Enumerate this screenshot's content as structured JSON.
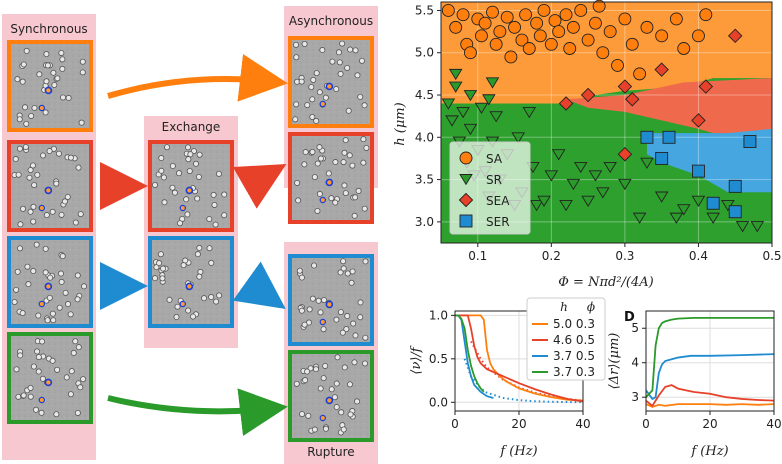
{
  "schematic": {
    "col_synchronous": "Synchronous",
    "col_exchange": "Exchange",
    "col_asynchronous": "Asynchronous",
    "col_rupture": "Rupture",
    "colors": {
      "SA": "#ff7f0e",
      "SEA": "#e8412a",
      "SER": "#1f8bd1",
      "SR": "#2a9a2a",
      "label_bg": "#f8c8d0"
    }
  },
  "chart_data": [
    {
      "id": "phase",
      "type": "scatter",
      "xlabel": "Φ = Nπd²/(4A)",
      "ylabel": "h (μm)",
      "xlim": [
        0.05,
        0.5
      ],
      "ylim": [
        2.75,
        5.6
      ],
      "xticks": [
        "0.1",
        "0.2",
        "0.3",
        "0.4",
        "0.5"
      ],
      "yticks": [
        "3.0",
        "3.5",
        "4.0",
        "4.5",
        "5.0",
        "5.5"
      ],
      "legend": {
        "placement": "bottom-left",
        "entries": [
          "SA",
          "SR",
          "SEA",
          "SER"
        ]
      },
      "series": [
        {
          "name": "SA",
          "marker": "circle",
          "color": "#ff7f0e",
          "points": [
            [
              0.06,
              5.5
            ],
            [
              0.07,
              5.3
            ],
            [
              0.08,
              5.45
            ],
            [
              0.085,
              5.1
            ],
            [
              0.09,
              5.0
            ],
            [
              0.1,
              5.4
            ],
            [
              0.105,
              5.2
            ],
            [
              0.11,
              5.35
            ],
            [
              0.12,
              5.48
            ],
            [
              0.125,
              5.1
            ],
            [
              0.13,
              5.25
            ],
            [
              0.14,
              5.42
            ],
            [
              0.145,
              4.95
            ],
            [
              0.15,
              5.3
            ],
            [
              0.16,
              5.15
            ],
            [
              0.165,
              5.45
            ],
            [
              0.17,
              5.05
            ],
            [
              0.18,
              5.35
            ],
            [
              0.185,
              5.2
            ],
            [
              0.19,
              5.5
            ],
            [
              0.2,
              5.1
            ],
            [
              0.205,
              5.38
            ],
            [
              0.21,
              5.25
            ],
            [
              0.22,
              5.45
            ],
            [
              0.225,
              5.05
            ],
            [
              0.23,
              5.3
            ],
            [
              0.24,
              5.5
            ],
            [
              0.25,
              5.15
            ],
            [
              0.26,
              5.35
            ],
            [
              0.265,
              5.55
            ],
            [
              0.27,
              5.0
            ],
            [
              0.28,
              5.25
            ],
            [
              0.29,
              4.85
            ],
            [
              0.3,
              5.4
            ],
            [
              0.31,
              5.1
            ],
            [
              0.32,
              4.75
            ],
            [
              0.33,
              5.3
            ],
            [
              0.35,
              5.2
            ],
            [
              0.37,
              5.4
            ],
            [
              0.38,
              5.05
            ],
            [
              0.4,
              5.2
            ],
            [
              0.41,
              5.45
            ]
          ]
        },
        {
          "name": "SR",
          "marker": "triangle-down",
          "color": "#2a9a2a",
          "points": [
            [
              0.06,
              4.4
            ],
            [
              0.065,
              4.2
            ],
            [
              0.07,
              4.6
            ],
            [
              0.075,
              3.95
            ],
            [
              0.08,
              4.3
            ],
            [
              0.085,
              3.7
            ],
            [
              0.09,
              4.1
            ],
            [
              0.095,
              3.55
            ],
            [
              0.1,
              3.85
            ],
            [
              0.105,
              4.35
            ],
            [
              0.11,
              3.6
            ],
            [
              0.115,
              3.3
            ],
            [
              0.12,
              3.95
            ],
            [
              0.125,
              4.25
            ],
            [
              0.13,
              3.5
            ],
            [
              0.14,
              3.8
            ],
            [
              0.15,
              3.2
            ],
            [
              0.155,
              4.0
            ],
            [
              0.16,
              3.35
            ],
            [
              0.17,
              4.3
            ],
            [
              0.175,
              3.65
            ],
            [
              0.18,
              3.2
            ],
            [
              0.19,
              3.25
            ],
            [
              0.2,
              3.55
            ],
            [
              0.21,
              3.8
            ],
            [
              0.22,
              3.2
            ],
            [
              0.23,
              3.45
            ],
            [
              0.24,
              3.65
            ],
            [
              0.25,
              3.25
            ],
            [
              0.26,
              3.55
            ],
            [
              0.27,
              3.35
            ],
            [
              0.28,
              3.65
            ],
            [
              0.3,
              3.45
            ],
            [
              0.32,
              3.05
            ],
            [
              0.33,
              3.7
            ],
            [
              0.35,
              3.3
            ],
            [
              0.37,
              3.05
            ],
            [
              0.38,
              3.15
            ],
            [
              0.4,
              3.25
            ],
            [
              0.42,
              3.05
            ],
            [
              0.44,
              3.2
            ],
            [
              0.46,
              2.95
            ],
            [
              0.48,
              2.95
            ],
            [
              0.07,
              4.75
            ],
            [
              0.12,
              4.65
            ],
            [
              0.09,
              4.5
            ],
            [
              0.115,
              4.45
            ]
          ]
        },
        {
          "name": "SEA",
          "marker": "diamond",
          "color": "#e8412a",
          "points": [
            [
              0.22,
              4.4
            ],
            [
              0.25,
              4.5
            ],
            [
              0.3,
              4.6
            ],
            [
              0.31,
              4.45
            ],
            [
              0.35,
              4.8
            ],
            [
              0.4,
              4.2
            ],
            [
              0.41,
              4.6
            ],
            [
              0.45,
              5.2
            ],
            [
              0.3,
              3.8
            ]
          ]
        },
        {
          "name": "SER",
          "marker": "square",
          "color": "#1f8bd1",
          "points": [
            [
              0.33,
              4.0
            ],
            [
              0.35,
              3.75
            ],
            [
              0.36,
              4.0
            ],
            [
              0.4,
              3.6
            ],
            [
              0.42,
              3.22
            ],
            [
              0.45,
              3.42
            ],
            [
              0.45,
              3.12
            ],
            [
              0.47,
              3.95
            ]
          ]
        }
      ]
    },
    {
      "id": "rate",
      "type": "line",
      "xlabel": "f (Hz)",
      "ylabel": "⟨ν⟩/f",
      "xlim": [
        0,
        40
      ],
      "ylim": [
        -0.1,
        1.05
      ],
      "xticks": [
        "0",
        "20",
        "40"
      ],
      "yticks": [
        "0.0",
        "0.5",
        "1.0"
      ],
      "legend_header": [
        "h",
        "ϕ"
      ],
      "series": [
        {
          "name": "5.0 0.3",
          "color": "#ff7f0e",
          "x": [
            0,
            2,
            4,
            6,
            8,
            9,
            10,
            11,
            12,
            14,
            16,
            20,
            25,
            30,
            35,
            40
          ],
          "y": [
            1,
            1,
            1,
            1,
            1,
            0.95,
            0.6,
            0.45,
            0.38,
            0.3,
            0.24,
            0.16,
            0.1,
            0.06,
            0.03,
            0.02
          ]
        },
        {
          "name": "4.6 0.5",
          "color": "#e8412a",
          "x": [
            0,
            2,
            4,
            5,
            6,
            7,
            8,
            10,
            15,
            20,
            25,
            30,
            35,
            40
          ],
          "y": [
            1,
            1,
            1,
            0.85,
            0.65,
            0.52,
            0.45,
            0.38,
            0.3,
            0.22,
            0.15,
            0.09,
            0.04,
            0.01
          ]
        },
        {
          "name": "3.7 0.5",
          "color": "#1f8bd1",
          "x": [
            0,
            1,
            2,
            3,
            4,
            5,
            6,
            8,
            10,
            12
          ],
          "y": [
            1,
            1,
            0.95,
            0.7,
            0.45,
            0.3,
            0.2,
            0.12,
            0.07,
            0.05
          ]
        },
        {
          "name": "3.7 0.3",
          "color": "#2a9a2a",
          "x": [
            0,
            1,
            2,
            3,
            4,
            5,
            6,
            7,
            8,
            9
          ],
          "y": [
            1,
            1,
            0.96,
            0.85,
            0.6,
            0.42,
            0.3,
            0.22,
            0.16,
            0.12
          ]
        }
      ],
      "dotted_series": [
        {
          "color": "#e8412a",
          "x": [
            5,
            8,
            10,
            15,
            20,
            25,
            30,
            35,
            40
          ],
          "y": [
            0.7,
            0.5,
            0.4,
            0.26,
            0.17,
            0.11,
            0.07,
            0.04,
            0.02
          ]
        },
        {
          "color": "#1f8bd1",
          "x": [
            3,
            5,
            8,
            10,
            15,
            20,
            25,
            30,
            35,
            40
          ],
          "y": [
            0.5,
            0.3,
            0.16,
            0.11,
            0.05,
            0.025,
            0.012,
            0.006,
            0.003,
            0.001
          ]
        }
      ]
    },
    {
      "id": "displacement",
      "panel_label": "D",
      "type": "line",
      "xlabel": "f (Hz)",
      "ylabel": "⟨Δr⟩(μm)",
      "xlim": [
        0,
        40
      ],
      "ylim": [
        2.6,
        5.5
      ],
      "xticks": [
        "0",
        "20",
        "40"
      ],
      "yticks": [
        "3",
        "4",
        "5"
      ],
      "series": [
        {
          "name": "5.0 0.3",
          "color": "#ff7f0e",
          "x": [
            0,
            2,
            4,
            6,
            10,
            15,
            20,
            25,
            30,
            35,
            40
          ],
          "y": [
            2.8,
            2.72,
            2.78,
            2.75,
            2.8,
            2.8,
            2.8,
            2.78,
            2.8,
            2.78,
            2.8
          ]
        },
        {
          "name": "4.6 0.5",
          "color": "#e8412a",
          "x": [
            0,
            2,
            4,
            6,
            8,
            10,
            15,
            20,
            25,
            30,
            35,
            40
          ],
          "y": [
            2.9,
            2.75,
            3.05,
            3.3,
            3.35,
            3.25,
            3.15,
            3.1,
            3.0,
            2.95,
            2.92,
            2.9
          ]
        },
        {
          "name": "3.7 0.5",
          "color": "#1f8bd1",
          "x": [
            0,
            2,
            3,
            4,
            5,
            6,
            8,
            10,
            14,
            20,
            30,
            40
          ],
          "y": [
            3.2,
            2.95,
            3.0,
            3.7,
            3.95,
            4.05,
            4.1,
            4.15,
            4.2,
            4.2,
            4.22,
            4.25
          ]
        },
        {
          "name": "3.7 0.3",
          "color": "#2a9a2a",
          "x": [
            0,
            1,
            2,
            3,
            4,
            5,
            6,
            8,
            10,
            15,
            20,
            30,
            40
          ],
          "y": [
            3.0,
            3.1,
            3.2,
            4.5,
            5.0,
            5.15,
            5.2,
            5.25,
            5.28,
            5.3,
            5.3,
            5.3,
            5.3
          ]
        }
      ]
    }
  ]
}
